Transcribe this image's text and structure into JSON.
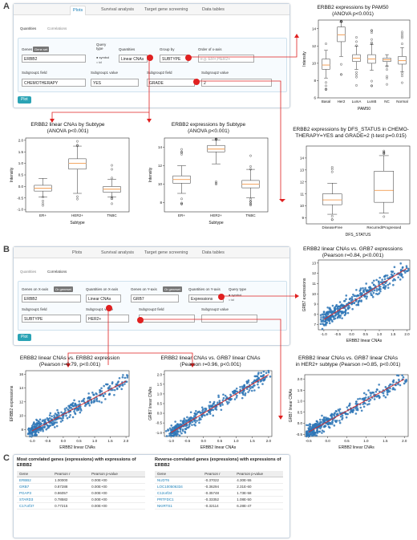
{
  "panels": {
    "a": "A",
    "b": "B",
    "c": "C"
  },
  "ui_a": {
    "tabs": [
      "Plots",
      "Survival analysis",
      "Target gene screening",
      "Data tables"
    ],
    "subtabs": [
      "Quantities",
      "Correlations"
    ],
    "genes_label": "Genes",
    "gene_set": "Gene set",
    "gene_value": "ERBB2",
    "query_type_label": "Query type",
    "radio_symbol": "symbol",
    "radio_id": "id",
    "quantities_label": "Quantities",
    "quantities_value": "Linear CNAs",
    "group_by_label": "Group by",
    "group_by_value": "SUBTYPE",
    "order_label": "Order of x-axis",
    "order_placeholder": "e.g. ER+,HER2+",
    "sg1_field_label": "Subgroup1 field",
    "sg1_field_value": "CHEMOTHERAPY",
    "sg1_value_label": "Subgroup1 value",
    "sg1_value_value": "YES",
    "sg2_field_label": "Subgroup2 field",
    "sg2_field_value": "GRADE",
    "sg2_value_label": "Subgroup2 value",
    "sg2_value_value": "2",
    "plot_btn": "Plot"
  },
  "ui_b": {
    "tabs": [
      "Plots",
      "Survival analysis",
      "Target gene screening",
      "Data tables"
    ],
    "subtabs": [
      "Quantities",
      "Correlations"
    ],
    "gx_label": "Genes on X-axis",
    "gx_tag": "Or geneset",
    "gx_value": "ERBB2",
    "qx_label": "Quantities on X-axis",
    "qx_value": "Linear CNAs",
    "gy_label": "Genes on Y-axis",
    "gy_tag": "Or geneset",
    "gy_value": "GRB7",
    "qy_label": "Quantities on Y-axis",
    "qy_value": "Expressions",
    "query_type_label": "Query type",
    "radio_symbol": "symbol",
    "radio_id": "id",
    "sg1_field_label": "Subgroup1 field",
    "sg1_field_value": "SUBTYPE",
    "sg1_value_label": "Subgroup1 value",
    "sg1_value_value": "HER2+",
    "sg2_field_label": "Subgroup2 field",
    "sg2_value_label": "Subgroup2 value",
    "plot_btn": "Plot"
  },
  "table_c": {
    "left_title": "Most correlated genes (expressions) with expressions of ERBB2",
    "right_title": "Reverse-correlated genes (expressions) with expressions of ERBB2",
    "headers": [
      "Gene",
      "Pearson r",
      "Pearson p-value"
    ],
    "left_rows": [
      [
        "ERBB2",
        "1.00000",
        "0.00E+00"
      ],
      [
        "GRB7",
        "0.87288",
        "0.00E+00"
      ],
      [
        "PGAP3",
        "0.86057",
        "0.00E+00"
      ],
      [
        "STARD3",
        "0.78582",
        "0.00E+00"
      ],
      [
        "C17orf37",
        "0.77215",
        "0.00E+00"
      ]
    ],
    "right_rows": [
      [
        "NUDT6",
        "-0.37022",
        "4.30E-55"
      ],
      [
        "LOC100506334",
        "-0.36294",
        "2.31E-60"
      ],
      [
        "C12orf24",
        "-0.35748",
        "1.73E-58"
      ],
      [
        "PRTFDC1",
        "-0.33352",
        "1.08E-50"
      ],
      [
        "NKIRTS1",
        "-0.32114",
        "6.28E-47"
      ]
    ]
  },
  "chart_data": [
    {
      "id": "pam50",
      "type": "box",
      "title": "ERBB2 expressions by PAM50",
      "subtitle": "(ANOVA p<0.001)",
      "xlabel": "PAM50",
      "ylabel": "Intensity",
      "categories": [
        "Basal",
        "Her2",
        "LumA",
        "LumB",
        "NC",
        "Normal"
      ],
      "ylim": [
        6,
        15
      ],
      "yticks": [
        6,
        8,
        10,
        12,
        14
      ],
      "boxes": [
        [
          8.3,
          9.3,
          9.8,
          10.5,
          11.5
        ],
        [
          10.8,
          12.5,
          13.3,
          14.2,
          14.8
        ],
        [
          9.3,
          10.2,
          10.6,
          11.0,
          12.0
        ],
        [
          9.2,
          10.0,
          10.5,
          11.0,
          12.2
        ],
        [
          9.7,
          10.2,
          10.4,
          10.6,
          11.0
        ],
        [
          9.0,
          9.9,
          10.3,
          10.8,
          11.8
        ]
      ]
    },
    {
      "id": "cna",
      "type": "box",
      "title": "ERBB2 linear CNAs by Subtype",
      "subtitle": "(ANOVA p<0.001)",
      "xlabel": "Subtype",
      "ylabel": "Intensity",
      "categories": [
        "ER+",
        "HER2+",
        "TNBC"
      ],
      "ylim": [
        -1.1,
        2.1
      ],
      "yticks": [
        -1.0,
        -0.5,
        0.0,
        0.5,
        1.0,
        1.5,
        2.0
      ],
      "boxes": [
        [
          -0.45,
          -0.2,
          -0.08,
          0.05,
          0.35
        ],
        [
          -0.3,
          0.75,
          1.0,
          1.2,
          1.75
        ],
        [
          -0.45,
          -0.25,
          -0.12,
          0.0,
          0.3
        ]
      ]
    },
    {
      "id": "expr",
      "type": "box",
      "title": "ERBB2 expressions by Subtype",
      "subtitle": "(ANOVA p<0.001)",
      "xlabel": "Subtype",
      "ylabel": "Intensity",
      "categories": [
        "ER+",
        "HER2+",
        "TNBC"
      ],
      "ylim": [
        7,
        15
      ],
      "yticks": [
        8,
        10,
        12,
        14
      ],
      "boxes": [
        [
          9.0,
          10.1,
          10.5,
          10.9,
          12.0
        ],
        [
          12.2,
          13.5,
          13.8,
          14.2,
          14.8
        ],
        [
          8.5,
          9.6,
          10.0,
          10.4,
          11.6
        ]
      ]
    },
    {
      "id": "dfs",
      "type": "box",
      "title": "ERBB2 expressions by DFS_STATUS in CHEMO-",
      "subtitle": "THERAPY=YES and GRADE=2 (t-test p=0.015)",
      "xlabel": "DFS_STATUS",
      "ylabel": "",
      "categories": [
        "DiseaseFree",
        "Recurred/Progressed"
      ],
      "ylim": [
        8.5,
        15
      ],
      "yticks": [
        9,
        10,
        11,
        12,
        13,
        14
      ],
      "boxes": [
        [
          9.3,
          10.1,
          10.5,
          11.0,
          11.9
        ],
        [
          9.4,
          10.3,
          11.3,
          12.9,
          14.2
        ]
      ]
    },
    {
      "id": "grb7",
      "type": "scatter",
      "title": "ERBB2 linear CNAs vs. GRB7 expressions",
      "subtitle": "(Pearson r=0.84, p<0.001)",
      "xlabel": "ERBB2 linear CNAs",
      "ylabel": "GRB7 expressions",
      "xlim": [
        -1.2,
        2.1
      ],
      "ylim": [
        6.5,
        13.3
      ],
      "xticks": [
        -1.0,
        -0.5,
        0.0,
        0.5,
        1.0,
        1.5,
        2.0
      ],
      "yticks": [
        7,
        8,
        9,
        10,
        11,
        12,
        13
      ],
      "fit": [
        [
          -1.0,
          7.5
        ],
        [
          2.0,
          12.5
        ]
      ]
    },
    {
      "id": "erbb2",
      "type": "scatter",
      "title": "ERBB2 linear CNAs vs. ERBB2 expression",
      "subtitle": "(Pearson r=0.79, p<0.001)",
      "xlabel": "ERBB2 linear CNAs",
      "ylabel": "ERBB2 expressions",
      "xlim": [
        -1.2,
        2.1
      ],
      "ylim": [
        7,
        16.5
      ],
      "xticks": [
        -1.0,
        -0.5,
        0.0,
        0.5,
        1.0,
        1.5,
        2.0
      ],
      "yticks": [
        8,
        10,
        12,
        14,
        16
      ],
      "fit": [
        [
          -1.0,
          7.8
        ],
        [
          2.0,
          15.0
        ]
      ]
    },
    {
      "id": "grb7cna",
      "type": "scatter",
      "title": "ERBB2 linear CNAs vs. GRB7 linear CNAs",
      "subtitle": "(Pearson r=0.96, p<0.001)",
      "xlabel": "ERBB2 linear CNAs",
      "ylabel": "GRB7 linear CNAs",
      "xlim": [
        -1.2,
        2.1
      ],
      "ylim": [
        -1.2,
        2.2
      ],
      "xticks": [
        -1.0,
        -0.5,
        0.0,
        0.5,
        1.0,
        1.5,
        2.0
      ],
      "yticks": [
        -1.0,
        -0.5,
        0.0,
        0.5,
        1.0,
        1.5,
        2.0
      ],
      "fit": [
        [
          -1.0,
          -1.0
        ],
        [
          2.0,
          2.0
        ]
      ]
    },
    {
      "id": "her2",
      "type": "scatter",
      "title": "ERBB2 linear CNAs vs. GRB7 linear CNAs",
      "subtitle": "in HER2+ subtype (Pearson r=0.85, p<0.001)",
      "xlabel": "ERBB2 linear CNAs",
      "ylabel": "GRB7 linear CNAs",
      "xlim": [
        -0.6,
        2.1
      ],
      "ylim": [
        -0.6,
        2.2
      ],
      "xticks": [
        -0.5,
        0.0,
        0.5,
        1.0,
        1.5,
        2.0
      ],
      "yticks": [
        -0.5,
        0.0,
        0.5,
        1.0,
        1.5,
        2.0
      ],
      "fit": [
        [
          -0.5,
          -0.4
        ],
        [
          2.0,
          2.0
        ]
      ]
    }
  ],
  "colors": {
    "accent": "#2aa3b5",
    "marker": "#e02020",
    "box": "#f08a30",
    "point": "#2e75b6",
    "fit": "#d62728"
  }
}
